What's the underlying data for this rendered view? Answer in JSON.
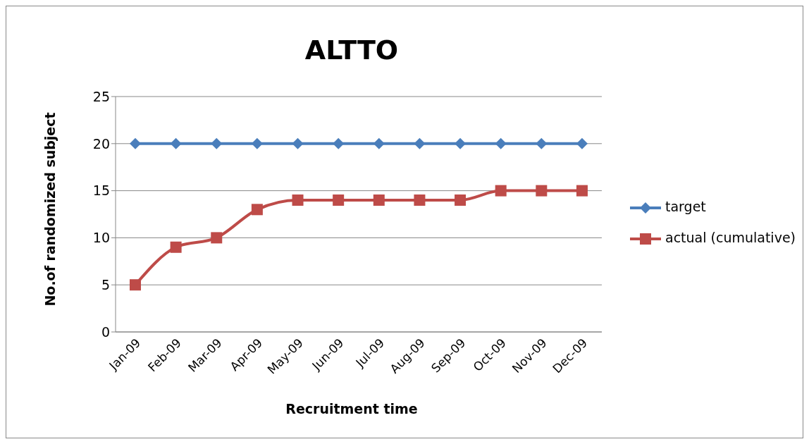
{
  "chart_data": {
    "type": "line",
    "title": "ALTTO",
    "xlabel": "Recruitment time",
    "ylabel": "No.of randomized subject",
    "categories": [
      "Jan-09",
      "Feb-09",
      "Mar-09",
      "Apr-09",
      "May-09",
      "Jun-09",
      "Jul-09",
      "Aug-09",
      "Sep-09",
      "Oct-09",
      "Nov-09",
      "Dec-09"
    ],
    "series": [
      {
        "name": "target",
        "color": "#4a7ebb",
        "marker": "diamond",
        "values": [
          20,
          20,
          20,
          20,
          20,
          20,
          20,
          20,
          20,
          20,
          20,
          20
        ]
      },
      {
        "name": "actual (cumulative)",
        "color": "#be4b48",
        "marker": "square",
        "values": [
          5,
          9,
          10,
          13,
          14,
          14,
          14,
          14,
          14,
          15,
          15,
          15
        ]
      }
    ],
    "ylim": [
      0,
      25
    ],
    "yticks": [
      0,
      5,
      10,
      15,
      20,
      25
    ],
    "grid": "y",
    "legend": "right"
  }
}
